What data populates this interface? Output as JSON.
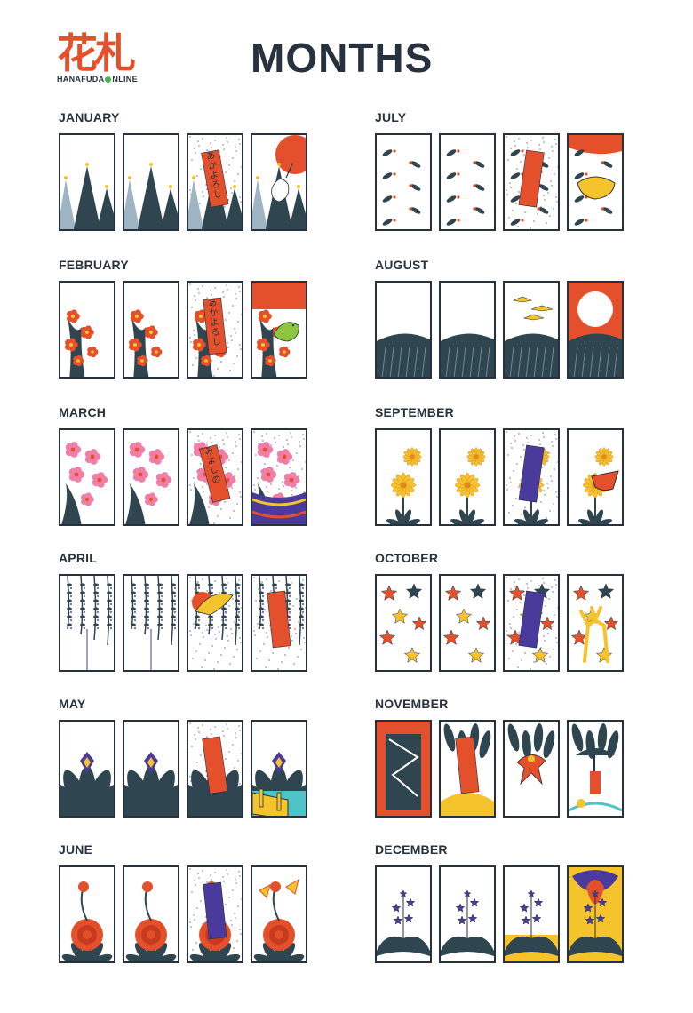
{
  "logo": {
    "kanji": "花札",
    "text_left": "HANAFUDA",
    "text_right": "NLINE"
  },
  "title": "MONTHS",
  "colors": {
    "ink": "#28323e",
    "red": "#e4502c",
    "teal": "#2f4650",
    "gold": "#f5c32c",
    "purple": "#4a3a9c",
    "pink": "#ef7fa6",
    "green": "#8cc63f",
    "cyan": "#4fc3c7"
  },
  "months": [
    {
      "name": "JANUARY",
      "cards": [
        "pine",
        "pine",
        "pine-ribbon-poem",
        "pine-crane-sun"
      ]
    },
    {
      "name": "FEBRUARY",
      "cards": [
        "plum",
        "plum",
        "plum-ribbon-poem",
        "plum-bush-warbler"
      ]
    },
    {
      "name": "MARCH",
      "cards": [
        "cherry",
        "cherry",
        "cherry-ribbon-poem",
        "cherry-curtain"
      ]
    },
    {
      "name": "APRIL",
      "cards": [
        "wisteria",
        "wisteria",
        "wisteria-cuckoo",
        "wisteria-ribbon"
      ]
    },
    {
      "name": "MAY",
      "cards": [
        "iris",
        "iris",
        "iris-ribbon",
        "iris-bridge"
      ]
    },
    {
      "name": "JUNE",
      "cards": [
        "peony",
        "peony",
        "peony-blue-ribbon",
        "peony-butterflies"
      ]
    },
    {
      "name": "JULY",
      "cards": [
        "clover",
        "clover",
        "clover-ribbon",
        "clover-boar"
      ]
    },
    {
      "name": "AUGUST",
      "cards": [
        "pampas",
        "pampas",
        "pampas-geese",
        "pampas-moon"
      ]
    },
    {
      "name": "SEPTEMBER",
      "cards": [
        "chrysanthemum",
        "chrysanthemum",
        "chrysanthemum-blue-ribbon",
        "chrysanthemum-sake-cup"
      ]
    },
    {
      "name": "OCTOBER",
      "cards": [
        "maple",
        "maple",
        "maple-blue-ribbon",
        "maple-deer"
      ]
    },
    {
      "name": "NOVEMBER",
      "cards": [
        "willow-lightning",
        "willow-ribbon",
        "willow-swallow",
        "willow-rain-man"
      ]
    },
    {
      "name": "DECEMBER",
      "cards": [
        "paulownia",
        "paulownia",
        "paulownia-yellow",
        "paulownia-phoenix"
      ]
    }
  ],
  "poems": {
    "akayoroshi": "あかよろし",
    "miyoshino": "みよしの"
  }
}
